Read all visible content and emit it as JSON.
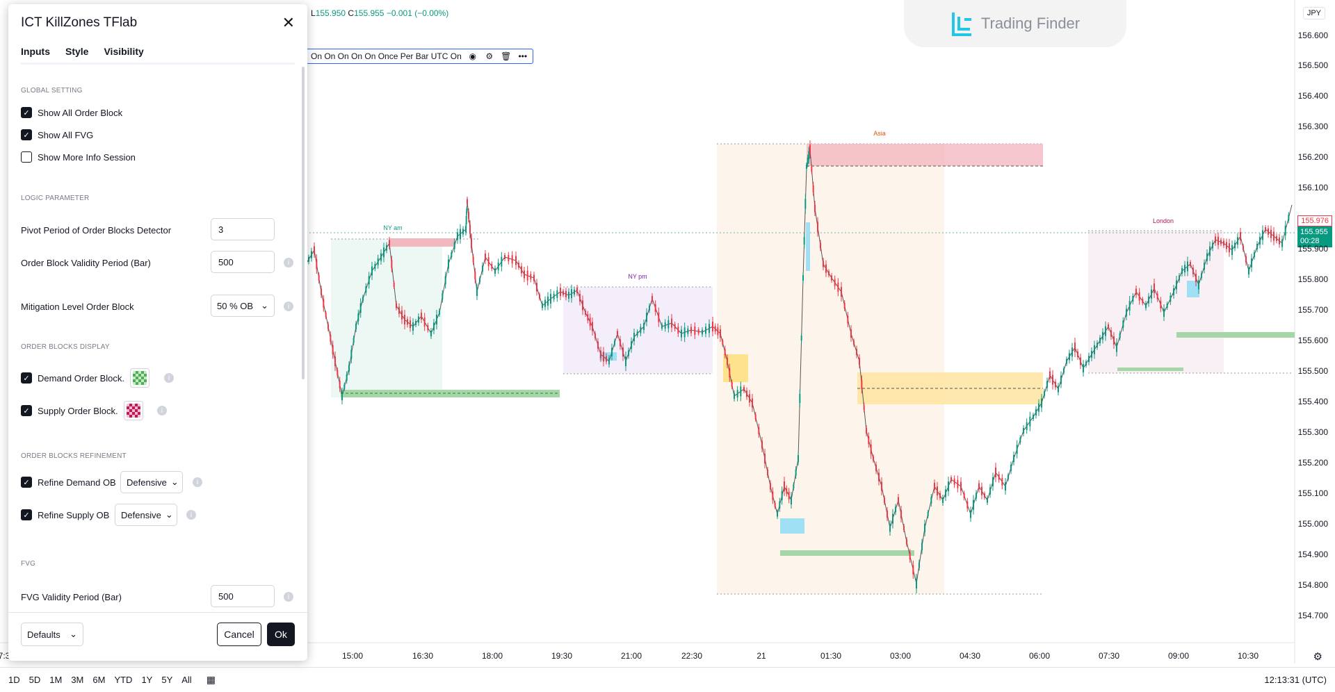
{
  "ohlc": {
    "low_label": "L",
    "low": "155.950",
    "close_label": "C",
    "close": "155.955",
    "change": "−0.001 (−0.00%)"
  },
  "indicator_row_text": "On On On On On Once Per Bar UTC On",
  "logo": {
    "text": "Trading Finder"
  },
  "currency": "JPY",
  "price_axis": [
    "156.600",
    "156.500",
    "156.400",
    "156.300",
    "156.200",
    "156.100",
    "155.900",
    "155.800",
    "155.700",
    "155.600",
    "155.500",
    "155.400",
    "155.300",
    "155.200",
    "155.100",
    "155.000",
    "154.900",
    "154.800",
    "154.700"
  ],
  "price_tags": {
    "red": "155.976",
    "green_price": "155.955",
    "green_timer": "00:28"
  },
  "time_axis": [
    "7:3",
    "15:00",
    "16:30",
    "18:00",
    "19:30",
    "21:00",
    "22:30",
    "21",
    "01:30",
    "03:00",
    "04:30",
    "06:00",
    "07:30",
    "09:00",
    "10:30"
  ],
  "sessions": {
    "ny_am": "NY am",
    "ny_pm": "NY pm",
    "asia": "Asia",
    "london": "London"
  },
  "bottom": {
    "ranges": [
      "1D",
      "5D",
      "1M",
      "3M",
      "6M",
      "YTD",
      "1Y",
      "5Y",
      "All"
    ],
    "clock": "12:13:31 (UTC)"
  },
  "colors": {
    "up": "#089981",
    "down": "#f23645",
    "accent": "#2962ff"
  },
  "icons": {
    "close": "close-icon",
    "eye": "eye-icon",
    "settings": "gear-icon",
    "delete": "trash-icon",
    "more": "more-icon",
    "calendar": "calendar-icon"
  },
  "dialog": {
    "title": "ICT KillZones TFlab",
    "tabs": [
      "Inputs",
      "Style",
      "Visibility"
    ],
    "active_tab": "Inputs",
    "global_setting": "GLOBAL SETTING",
    "show_all_ob": "Show All Order Block",
    "show_all_fvg": "Show All FVG",
    "show_more_info": "Show More Info Session",
    "logic_parameter": "LOGIC PARAMETER",
    "pivot_label": "Pivot Period of Order Blocks Detector",
    "pivot_value": "3",
    "ob_validity_label": "Order Block Validity Period (Bar)",
    "ob_validity_value": "500",
    "mitigation_label": "Mitigation Level Order Block",
    "mitigation_value": "50 % OB",
    "ob_display": "ORDER BLOCKS DISPLAY",
    "demand_ob": "Demand Order Block.",
    "supply_ob": "Supply Order Block.",
    "ob_refinement": "ORDER BLOCKS REFINEMENT",
    "refine_demand": "Refine Demand OB",
    "refine_demand_value": "Defensive",
    "refine_supply": "Refine Supply OB",
    "refine_supply_value": "Defensive",
    "fvg_head": "FVG",
    "fvg_validity_label": "FVG Validity Period (Bar)",
    "fvg_validity_value": "500",
    "defaults": "Defaults",
    "cancel": "Cancel",
    "ok": "Ok"
  }
}
